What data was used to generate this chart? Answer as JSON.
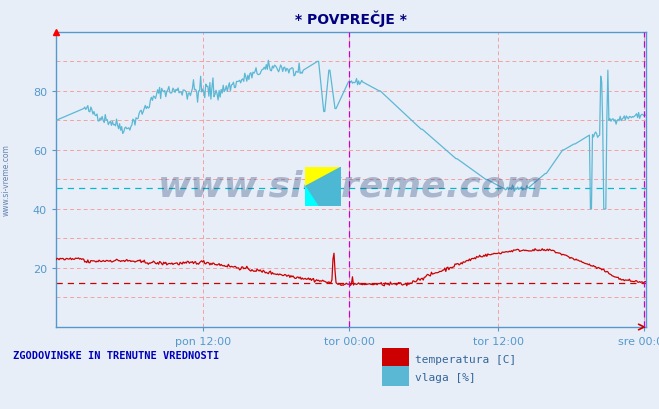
{
  "title": "* POVPREČJE *",
  "subtitle": "ZGODOVINSKE IN TRENUTNE VREDNOSTI",
  "legend_labels": [
    "temperatura [C]",
    "vlaga [%]"
  ],
  "legend_colors": [
    "#cc0000",
    "#5bb8d4"
  ],
  "bg_color": "#e8eef8",
  "plot_bg_color": "#e8eef8",
  "title_color": "#000080",
  "label_color": "#0000bb",
  "ylim": [
    0,
    100
  ],
  "yticks": [
    20,
    40,
    60,
    80
  ],
  "xtick_pos": [
    0.25,
    0.497,
    0.75,
    0.997
  ],
  "xlabel_ticks": [
    "pon 12:00",
    "tor 00:00",
    "tor 12:00",
    "sre 00:00"
  ],
  "vline_positions": [
    0.497,
    0.997
  ],
  "hline_cyan_y": 47.0,
  "hline_red_y": 15.0,
  "watermark": "www.si-vreme.com",
  "watermark_color": "#1a3a6e",
  "watermark_alpha": 0.3,
  "side_text": "www.si-vreme.com",
  "temp_color": "#cc0000",
  "humidity_color": "#5bb8d4",
  "grid_pink": "#f5a0a0",
  "grid_blue": "#c8d8f0",
  "spine_color": "#5599cc",
  "tick_color": "#336699"
}
